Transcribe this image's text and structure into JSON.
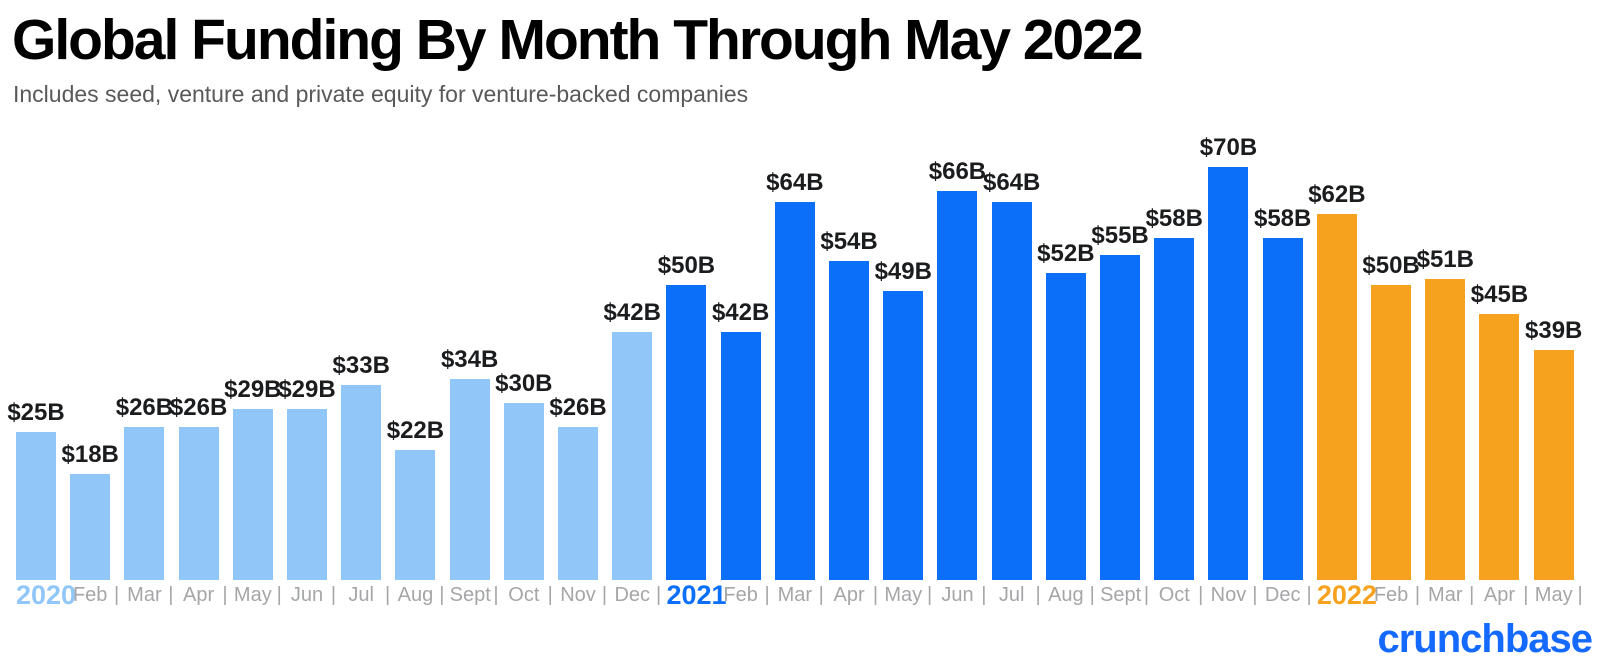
{
  "header": {
    "title": "Global Funding By Month Through May 2022",
    "subtitle": "Includes seed, venture and private equity for venture-backed companies"
  },
  "branding": {
    "logo_text": "crunchbase",
    "logo_color": "#146AFF"
  },
  "colors": {
    "background": "#FFFFFF",
    "title_text": "#000000",
    "subtitle_text": "#58595B",
    "value_label_text": "#1B1C1E",
    "axis_text": "#A5A6A8",
    "bar_2020": "#90C7F8",
    "bar_2021": "#0B6FFA",
    "bar_2022": "#F6A21F"
  },
  "chart_data": {
    "type": "bar",
    "title": "Global Funding By Month Through May 2022",
    "subtitle": "Includes seed, venture and private equity for venture-backed companies",
    "value_prefix": "$",
    "value_suffix": "B",
    "ylim": [
      0,
      70
    ],
    "grid": false,
    "legend": "none",
    "axis_separator": "|",
    "year_colors": {
      "2020": "#90C7F8",
      "2021": "#0B6FFA",
      "2022": "#F6A21F"
    },
    "bars": [
      {
        "x_label": "2020",
        "is_year": true,
        "year": "2020",
        "value": 25
      },
      {
        "x_label": "Feb",
        "is_year": false,
        "year": "2020",
        "value": 18
      },
      {
        "x_label": "Mar",
        "is_year": false,
        "year": "2020",
        "value": 26
      },
      {
        "x_label": "Apr",
        "is_year": false,
        "year": "2020",
        "value": 26
      },
      {
        "x_label": "May",
        "is_year": false,
        "year": "2020",
        "value": 29
      },
      {
        "x_label": "Jun",
        "is_year": false,
        "year": "2020",
        "value": 29
      },
      {
        "x_label": "Jul",
        "is_year": false,
        "year": "2020",
        "value": 33
      },
      {
        "x_label": "Aug",
        "is_year": false,
        "year": "2020",
        "value": 22
      },
      {
        "x_label": "Sept",
        "is_year": false,
        "year": "2020",
        "value": 34
      },
      {
        "x_label": "Oct",
        "is_year": false,
        "year": "2020",
        "value": 30
      },
      {
        "x_label": "Nov",
        "is_year": false,
        "year": "2020",
        "value": 26
      },
      {
        "x_label": "Dec",
        "is_year": false,
        "year": "2020",
        "value": 42
      },
      {
        "x_label": "2021",
        "is_year": true,
        "year": "2021",
        "value": 50
      },
      {
        "x_label": "Feb",
        "is_year": false,
        "year": "2021",
        "value": 42
      },
      {
        "x_label": "Mar",
        "is_year": false,
        "year": "2021",
        "value": 64
      },
      {
        "x_label": "Apr",
        "is_year": false,
        "year": "2021",
        "value": 54
      },
      {
        "x_label": "May",
        "is_year": false,
        "year": "2021",
        "value": 49
      },
      {
        "x_label": "Jun",
        "is_year": false,
        "year": "2021",
        "value": 66
      },
      {
        "x_label": "Jul",
        "is_year": false,
        "year": "2021",
        "value": 64
      },
      {
        "x_label": "Aug",
        "is_year": false,
        "year": "2021",
        "value": 52
      },
      {
        "x_label": "Sept",
        "is_year": false,
        "year": "2021",
        "value": 55
      },
      {
        "x_label": "Oct",
        "is_year": false,
        "year": "2021",
        "value": 58
      },
      {
        "x_label": "Nov",
        "is_year": false,
        "year": "2021",
        "value": 70
      },
      {
        "x_label": "Dec",
        "is_year": false,
        "year": "2021",
        "value": 58
      },
      {
        "x_label": "2022",
        "is_year": true,
        "year": "2022",
        "value": 62
      },
      {
        "x_label": "Feb",
        "is_year": false,
        "year": "2022",
        "value": 50
      },
      {
        "x_label": "Mar",
        "is_year": false,
        "year": "2022",
        "value": 51
      },
      {
        "x_label": "Apr",
        "is_year": false,
        "year": "2022",
        "value": 45
      },
      {
        "x_label": "May",
        "is_year": false,
        "year": "2022",
        "value": 39
      }
    ]
  }
}
